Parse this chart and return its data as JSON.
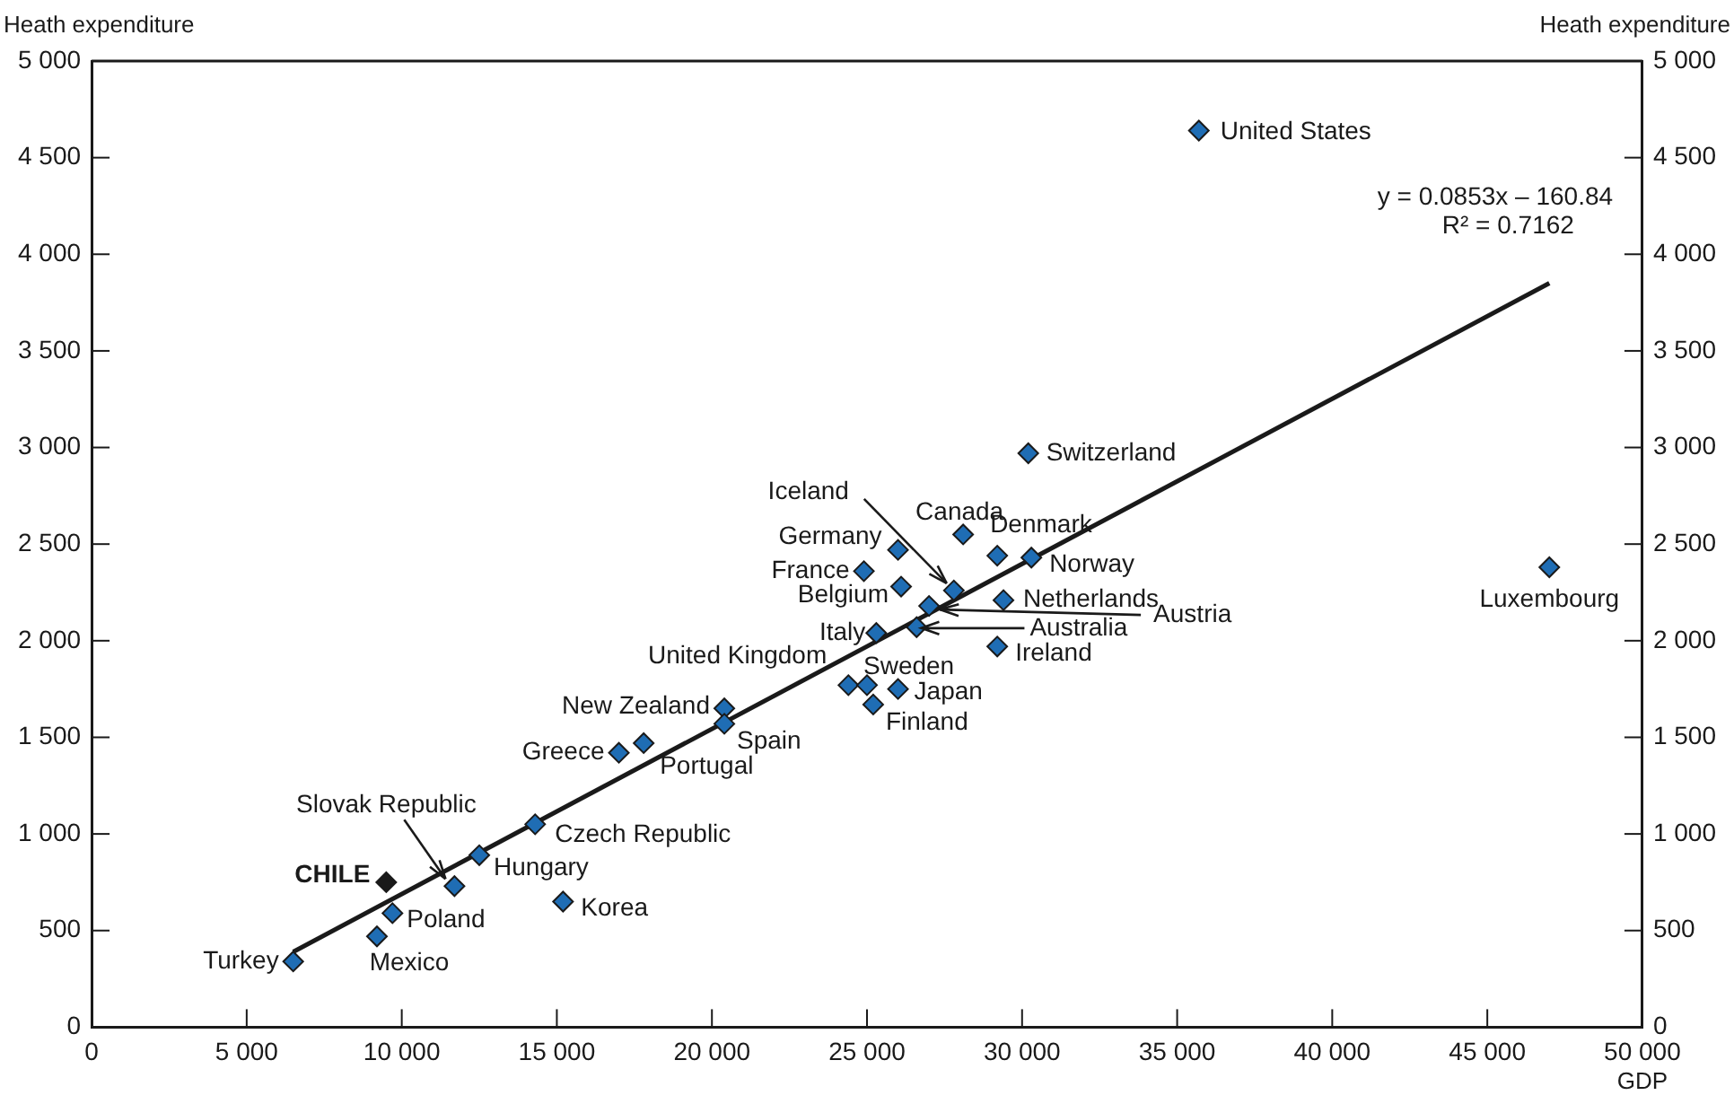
{
  "chart_data": {
    "type": "scatter",
    "xlabel": "GDP",
    "ylabel": "Heath expenditure",
    "y2label": "Heath expenditure",
    "xlim": [
      0,
      50000
    ],
    "ylim": [
      0,
      5000
    ],
    "y2lim": [
      0,
      5000
    ],
    "xticks": [
      0,
      {
        "value": 5000,
        "label": "5 000"
      },
      {
        "value": 10000,
        "label": "10 000"
      },
      {
        "value": 15000,
        "label": "15 000"
      },
      {
        "value": 20000,
        "label": "20 000"
      },
      {
        "value": 25000,
        "label": "25 000"
      },
      {
        "value": 30000,
        "label": "30 000"
      },
      {
        "value": 35000,
        "label": "35 000"
      },
      {
        "value": 40000,
        "label": "40 000"
      },
      {
        "value": 45000,
        "label": "45 000"
      },
      {
        "value": 50000,
        "label": "50 000"
      }
    ],
    "yticks": [
      0,
      500,
      {
        "value": 1000,
        "label": "1 000"
      },
      {
        "value": 1500,
        "label": "1 500"
      },
      {
        "value": 2000,
        "label": "2 000"
      },
      {
        "value": 2500,
        "label": "2 500"
      },
      {
        "value": 3000,
        "label": "3 000"
      },
      {
        "value": 3500,
        "label": "3 500"
      },
      {
        "value": 4000,
        "label": "4 000"
      },
      {
        "value": 4500,
        "label": "4 500"
      },
      {
        "value": 5000,
        "label": "5 000"
      }
    ],
    "y2ticks": [
      0,
      500,
      {
        "value": 1000,
        "label": "1 000"
      },
      {
        "value": 1500,
        "label": "1 500"
      },
      {
        "value": 2000,
        "label": "2 000"
      },
      {
        "value": 2500,
        "label": "2 500"
      },
      {
        "value": 3000,
        "label": "3 000"
      },
      {
        "value": 3500,
        "label": "3 500"
      },
      {
        "value": 4000,
        "label": "4 000"
      },
      {
        "value": 4500,
        "label": "4 500"
      },
      {
        "value": 5000,
        "label": "5 000"
      }
    ],
    "grid": false,
    "legend": false,
    "marker": "diamond",
    "series": [
      {
        "type": "scatter",
        "x": [
          6500,
          9200,
          9700,
          9500,
          11700,
          12500,
          14300,
          15200,
          17000,
          17800,
          20400,
          20400,
          24400,
          25000,
          25200,
          26000,
          25300,
          26600,
          27000,
          27800,
          26100,
          24900,
          26000,
          28100,
          29200,
          30300,
          29400,
          29200,
          30200,
          35700,
          47000
        ],
        "values": [
          340,
          470,
          590,
          750,
          730,
          890,
          1050,
          650,
          1420,
          1470,
          1650,
          1570,
          1770,
          1770,
          1670,
          1750,
          2040,
          2070,
          2180,
          2260,
          2280,
          2360,
          2470,
          2550,
          2440,
          2430,
          2210,
          1970,
          2970,
          4640,
          2380
        ],
        "colors": [
          "#1f6db4",
          "#1f6db4",
          "#1f6db4",
          "#1a1a1a",
          "#1f6db4",
          "#1f6db4",
          "#1f6db4",
          "#1f6db4",
          "#1f6db4",
          "#1f6db4",
          "#1f6db4",
          "#1f6db4",
          "#1f6db4",
          "#1f6db4",
          "#1f6db4",
          "#1f6db4",
          "#1f6db4",
          "#1f6db4",
          "#1f6db4",
          "#1f6db4",
          "#1f6db4",
          "#1f6db4",
          "#1f6db4",
          "#1f6db4",
          "#1f6db4",
          "#1f6db4",
          "#1f6db4",
          "#1f6db4",
          "#1f6db4",
          "#1f6db4",
          "#1f6db4"
        ]
      },
      {
        "type": "line",
        "x": [
          6500,
          47000
        ],
        "values": [
          390,
          3850
        ],
        "color": "#1a1a1a",
        "marker": "none",
        "line_style": "solid"
      }
    ],
    "annotations": [
      {
        "text": "Turkey",
        "x": 6500,
        "y": 340
      },
      {
        "text": "Mexico",
        "x": 9200,
        "y": 470
      },
      {
        "text": "Poland",
        "x": 9700,
        "y": 590
      },
      {
        "text": "CHILE",
        "x": 9500,
        "y": 750
      },
      {
        "text": "Slovak Republic",
        "x": 11700,
        "y": 730
      },
      {
        "text": "Hungary",
        "x": 12500,
        "y": 890
      },
      {
        "text": "Czech Republic",
        "x": 14300,
        "y": 1050
      },
      {
        "text": "Korea",
        "x": 15200,
        "y": 650
      },
      {
        "text": "Greece",
        "x": 17000,
        "y": 1420
      },
      {
        "text": "Portugal",
        "x": 17800,
        "y": 1470
      },
      {
        "text": "New Zealand",
        "x": 20400,
        "y": 1650
      },
      {
        "text": "Spain",
        "x": 20400,
        "y": 1570
      },
      {
        "text": "United Kingdom",
        "x": 24400,
        "y": 1770
      },
      {
        "text": "Sweden",
        "x": 25000,
        "y": 1770
      },
      {
        "text": "Finland",
        "x": 25200,
        "y": 1670
      },
      {
        "text": "Japan",
        "x": 26000,
        "y": 1750
      },
      {
        "text": "Italy",
        "x": 25300,
        "y": 2040
      },
      "Australia",
      {
        "text": "Austria",
        "x": 27000,
        "y": 2180
      },
      {
        "text": "Iceland",
        "x": 27800,
        "y": 2260
      },
      {
        "text": "Belgium",
        "x": 26100,
        "y": 2280
      },
      {
        "text": "France",
        "x": 24900,
        "y": 2360
      },
      {
        "text": "Germany",
        "x": 26000,
        "y": 2470
      },
      {
        "text": "Canada",
        "x": 28100,
        "y": 2550
      },
      {
        "text": "Denmark",
        "x": 29200,
        "y": 2440
      },
      {
        "text": "Norway",
        "x": 30300,
        "y": 2430
      },
      {
        "text": "Netherlands",
        "x": 29400,
        "y": 2210
      },
      {
        "text": "Ireland",
        "x": 29200,
        "y": 1970
      },
      {
        "text": "Switzerland",
        "x": 30200,
        "y": 2970
      },
      {
        "text": "United States",
        "x": 35700,
        "y": 4640
      },
      {
        "text": "Luxembourg",
        "x": 47000,
        "y": 2380
      },
      "y = 0.0853x – 160.84",
      "R² = 0.7162"
    ]
  }
}
